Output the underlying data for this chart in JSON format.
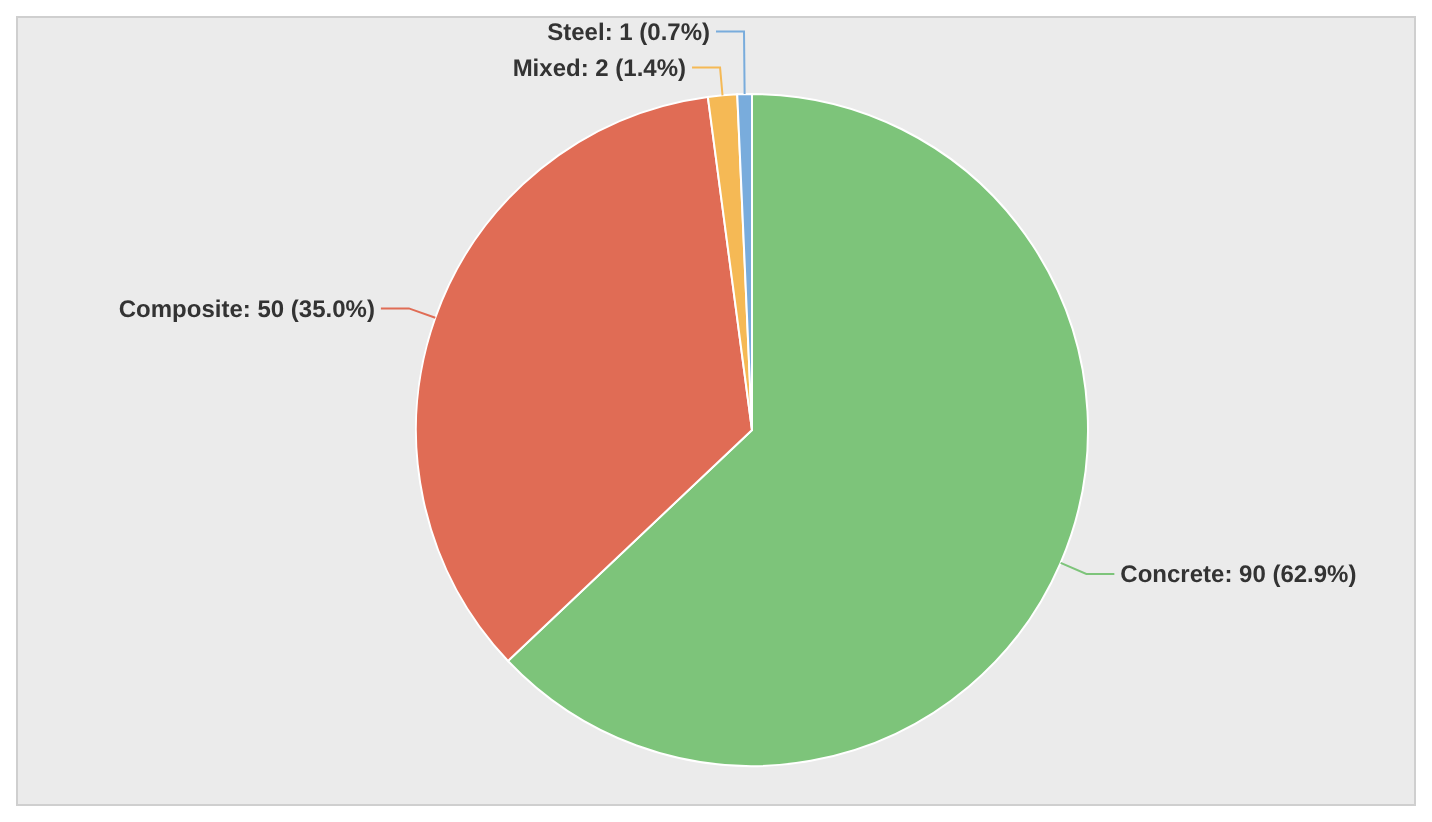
{
  "chart_data": {
    "type": "pie",
    "categories": [
      "Concrete",
      "Composite",
      "Mixed",
      "Steel"
    ],
    "values": [
      90,
      50,
      2,
      1
    ],
    "colors": [
      "#7dc47a",
      "#e06c55",
      "#f5b955",
      "#79acdc"
    ],
    "value_labels": [
      ": 90 (62.9%)",
      ": 50 (35.0%)",
      ": 2 (1.4%)",
      ": 1 (0.7%)"
    ]
  }
}
